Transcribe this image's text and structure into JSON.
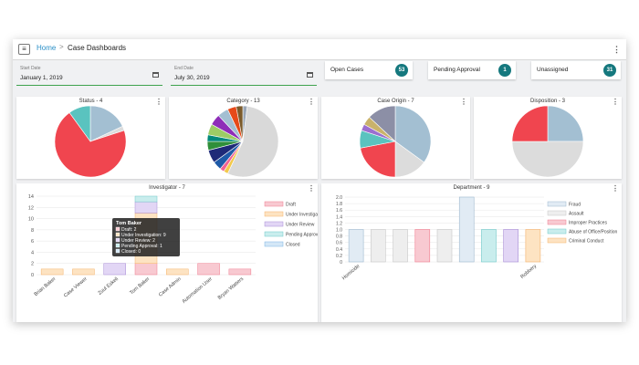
{
  "breadcrumb": {
    "home": "Home",
    "separator": ">",
    "current": "Case Dashboards"
  },
  "filters": {
    "start_label": "Start Date",
    "start_value": "January 1, 2019",
    "end_label": "End Date",
    "end_value": "July 30, 2019"
  },
  "stats": [
    {
      "label": "Open Cases",
      "count": "53"
    },
    {
      "label": "Pending Approval",
      "count": "1"
    },
    {
      "label": "Unassigned",
      "count": "31"
    }
  ],
  "icons": {
    "menu": "hamburger-icon",
    "more": "kebab-icon",
    "calendar": "calendar-icon"
  },
  "chart_data": [
    {
      "type": "pie",
      "title": "Status - 4",
      "slices": [
        {
          "value": 18,
          "color": "#a3bfd2"
        },
        {
          "value": 2,
          "color": "#dcdcdc"
        },
        {
          "value": 70,
          "color": "#f0454f"
        },
        {
          "value": 10,
          "color": "#5ac3bf"
        }
      ]
    },
    {
      "type": "pie",
      "title": "Category - 13",
      "slices": [
        {
          "value": 2,
          "color": "#9aa6b6"
        },
        {
          "value": 55,
          "color": "#d9d9d9"
        },
        {
          "value": 2,
          "color": "#f2c94c"
        },
        {
          "value": 2,
          "color": "#f06292"
        },
        {
          "value": 4,
          "color": "#1e5aa8"
        },
        {
          "value": 6,
          "color": "#1e2a78"
        },
        {
          "value": 4,
          "color": "#2f8f3a"
        },
        {
          "value": 3,
          "color": "#00897b"
        },
        {
          "value": 5,
          "color": "#9ccc65"
        },
        {
          "value": 5,
          "color": "#8e2db8"
        },
        {
          "value": 5,
          "color": "#a3bfd2"
        },
        {
          "value": 4,
          "color": "#e64a19"
        },
        {
          "value": 3,
          "color": "#7b5a2b"
        }
      ]
    },
    {
      "type": "pie",
      "title": "Case Origin - 7",
      "slices": [
        {
          "value": 35,
          "color": "#a3bfd2"
        },
        {
          "value": 15,
          "color": "#dcdcdc"
        },
        {
          "value": 22,
          "color": "#f0454f"
        },
        {
          "value": 8,
          "color": "#5ac3bf"
        },
        {
          "value": 3,
          "color": "#9b6fd0"
        },
        {
          "value": 4,
          "color": "#c9b26b"
        },
        {
          "value": 13,
          "color": "#8c8fa6"
        }
      ]
    },
    {
      "type": "pie",
      "title": "Disposition - 3",
      "slices": [
        {
          "value": 25,
          "color": "#a3bfd2"
        },
        {
          "value": 50,
          "color": "#dcdcdc"
        },
        {
          "value": 25,
          "color": "#f0454f"
        }
      ]
    },
    {
      "type": "bar",
      "stacked": true,
      "title": "Investigator - 7",
      "categories": [
        "Brian Baker",
        "Case Viewer",
        "Zuul Eskeli",
        "Tom Baker",
        "Case Admin",
        "Automation User",
        "Bryan Watters"
      ],
      "series": [
        {
          "name": "Draft",
          "color": "#f8c9d1",
          "stroke": "#f07d8f",
          "values": [
            0,
            0,
            0,
            2,
            0,
            2,
            1
          ]
        },
        {
          "name": "Under Investigation",
          "color": "#fde3c2",
          "stroke": "#f5b26b",
          "values": [
            1,
            1,
            0,
            9,
            1,
            0,
            0
          ]
        },
        {
          "name": "Under Review",
          "color": "#e2d6f5",
          "stroke": "#a78bd6",
          "values": [
            0,
            0,
            2,
            2,
            0,
            0,
            0
          ]
        },
        {
          "name": "Pending Approval",
          "color": "#c9eded",
          "stroke": "#6fc8c8",
          "values": [
            0,
            0,
            0,
            1,
            0,
            0,
            0
          ]
        },
        {
          "name": "Closed",
          "color": "#d4e7f7",
          "stroke": "#7ab4e2",
          "values": [
            0,
            0,
            0,
            0,
            0,
            0,
            0
          ]
        }
      ],
      "ylim": [
        0,
        14
      ],
      "yticks": [
        0,
        2,
        4,
        6,
        8,
        10,
        12,
        14
      ],
      "legend": "right",
      "tooltip": {
        "title": "Tom Baker",
        "lines": [
          "Draft: 2",
          "Under Investigation: 9",
          "Under Review: 2",
          "Pending Approval: 1",
          "Closed: 0"
        ],
        "colors": [
          "#f8c9d1",
          "#fde3c2",
          "#e2d6f5",
          "#c9eded",
          "#d4e7f7"
        ]
      }
    },
    {
      "type": "bar",
      "title": "Department - 9",
      "categories": [
        "Homicide",
        "",
        "",
        "",
        "",
        "",
        "",
        "",
        "Robbery"
      ],
      "values": [
        1,
        1,
        1,
        1,
        1,
        2,
        1,
        1,
        1
      ],
      "colors": [
        "#e1ebf4",
        "#eeeeee",
        "#eeeeee",
        "#f8c9d1",
        "#eeeeee",
        "#e1ebf4",
        "#c9eded",
        "#e2d6f5",
        "#fde3c2"
      ],
      "strokes": [
        "#9db8cf",
        "#c8c8c8",
        "#c8c8c8",
        "#f07d8f",
        "#c8c8c8",
        "#9db8cf",
        "#6fc8c8",
        "#a78bd6",
        "#f5b26b"
      ],
      "legend_entries": [
        {
          "name": "Fraud",
          "color": "#e1ebf4",
          "stroke": "#9db8cf"
        },
        {
          "name": "Assault",
          "color": "#eeeeee",
          "stroke": "#c8c8c8"
        },
        {
          "name": "Improper Practices",
          "color": "#f8c9d1",
          "stroke": "#f07d8f"
        },
        {
          "name": "Abuse of Office/Position",
          "color": "#c9eded",
          "stroke": "#6fc8c8"
        },
        {
          "name": "Criminal Conduct",
          "color": "#fde3c2",
          "stroke": "#f5b26b"
        }
      ],
      "ylim": [
        0,
        2
      ],
      "yticks": [
        "0",
        "0.2",
        "0.4",
        "0.6",
        "0.8",
        "1.0",
        "1.2",
        "1.4",
        "1.6",
        "1.8",
        "2.0"
      ],
      "legend": "right"
    }
  ]
}
